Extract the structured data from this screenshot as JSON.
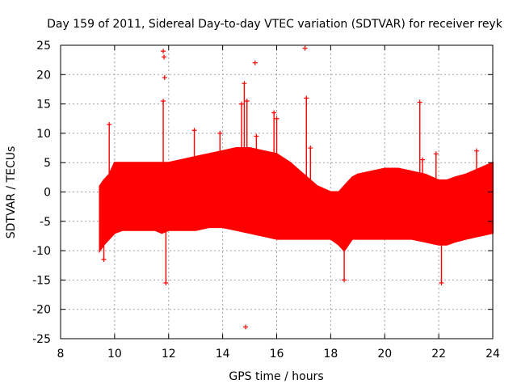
{
  "chart_data": {
    "type": "scatter",
    "title": "Day 159 of 2011, Sidereal Day-to-day VTEC variation (SDTVAR) for receiver reyk",
    "xlabel": "GPS time / hours",
    "ylabel": "SDTVAR / TECUs",
    "xlim": [
      8,
      24
    ],
    "ylim": [
      -25,
      25
    ],
    "xticks": [
      8,
      10,
      12,
      14,
      16,
      18,
      20,
      22,
      24
    ],
    "yticks": [
      -25,
      -20,
      -15,
      -10,
      -5,
      0,
      5,
      10,
      15,
      20,
      25
    ],
    "xtick_labels": [
      "8",
      "10",
      "12",
      "14",
      "16",
      "18",
      "20",
      "22",
      "24"
    ],
    "ytick_labels": [
      "-25",
      "-20",
      "-15",
      "-10",
      "-5",
      "0",
      "5",
      "10",
      "15",
      "20",
      "25"
    ],
    "grid": true,
    "series": [
      {
        "name": "SDTVAR",
        "color": "#ff0000",
        "marker": "plus",
        "envelope_x": [
          9.45,
          9.6,
          9.8,
          10.0,
          10.3,
          10.6,
          11.0,
          11.5,
          11.75,
          12.0,
          12.5,
          13.0,
          13.5,
          14.0,
          14.5,
          15.0,
          15.5,
          16.0,
          16.5,
          17.0,
          17.5,
          18.0,
          18.3,
          18.5,
          18.8,
          19.0,
          19.5,
          20.0,
          20.5,
          21.0,
          21.5,
          22.0,
          22.3,
          22.6,
          23.0,
          23.5,
          24.0
        ],
        "envelope_upper": [
          1,
          2,
          3,
          5,
          5,
          5,
          5,
          5,
          5,
          5,
          5.5,
          6,
          6.5,
          7,
          7.5,
          7.5,
          7,
          6.5,
          5,
          3,
          1,
          0,
          0,
          1,
          2.5,
          3,
          3.5,
          4,
          4,
          3.5,
          3,
          2,
          2,
          2.5,
          3,
          4,
          5
        ],
        "envelope_lower": [
          -10,
          -9,
          -8,
          -7,
          -6.5,
          -6.5,
          -6.5,
          -6.5,
          -7,
          -6.5,
          -6.5,
          -6.5,
          -6,
          -6,
          -6.5,
          -7,
          -7.5,
          -8,
          -8,
          -8,
          -8,
          -8,
          -9,
          -10,
          -8,
          -8,
          -8,
          -8,
          -8,
          -8,
          -8.5,
          -9,
          -9,
          -8.5,
          -8,
          -7.5,
          -7
        ],
        "spikes": [
          {
            "x": 9.6,
            "y": -11.5
          },
          {
            "x": 9.8,
            "y": 11.5
          },
          {
            "x": 11.8,
            "y": 24
          },
          {
            "x": 11.83,
            "y": 23
          },
          {
            "x": 11.85,
            "y": 19.5
          },
          {
            "x": 11.9,
            "y": -15.5
          },
          {
            "x": 11.8,
            "y": 15.5
          },
          {
            "x": 12.95,
            "y": 10.5
          },
          {
            "x": 13.9,
            "y": 10
          },
          {
            "x": 14.7,
            "y": 15
          },
          {
            "x": 14.8,
            "y": 18.5
          },
          {
            "x": 14.85,
            "y": -23
          },
          {
            "x": 14.9,
            "y": 15.5
          },
          {
            "x": 15.2,
            "y": 22
          },
          {
            "x": 15.25,
            "y": 9.5
          },
          {
            "x": 15.9,
            "y": 13.5
          },
          {
            "x": 16.0,
            "y": 12.5
          },
          {
            "x": 17.05,
            "y": 24.5
          },
          {
            "x": 17.1,
            "y": 16
          },
          {
            "x": 17.25,
            "y": 7.5
          },
          {
            "x": 18.5,
            "y": -15
          },
          {
            "x": 21.3,
            "y": 15.3
          },
          {
            "x": 21.4,
            "y": 5.5
          },
          {
            "x": 21.9,
            "y": 6.5
          },
          {
            "x": 22.1,
            "y": -15.5
          },
          {
            "x": 23.4,
            "y": 7
          }
        ]
      }
    ]
  }
}
